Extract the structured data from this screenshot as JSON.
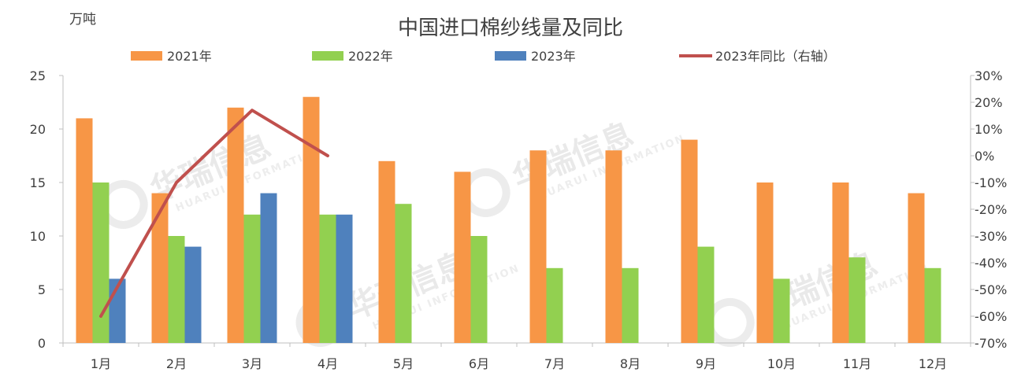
{
  "chart_data": {
    "type": "bar",
    "title": "中国进口棉纱线量及同比",
    "unit_left": "万吨",
    "categories": [
      "1月",
      "2月",
      "3月",
      "4月",
      "5月",
      "6月",
      "7月",
      "8月",
      "9月",
      "10月",
      "11月",
      "12月"
    ],
    "series": [
      {
        "name": "2021年",
        "type": "bar",
        "axis": "left",
        "color": "#F79646",
        "values": [
          21,
          14,
          22,
          23,
          17,
          16,
          18,
          18,
          19,
          15,
          15,
          14
        ]
      },
      {
        "name": "2022年",
        "type": "bar",
        "axis": "left",
        "color": "#92D050",
        "values": [
          15,
          10,
          12,
          12,
          13,
          10,
          7,
          7,
          9,
          6,
          8,
          7
        ]
      },
      {
        "name": "2023年",
        "type": "bar",
        "axis": "left",
        "color": "#4F81BD",
        "values": [
          6,
          9,
          14,
          12,
          null,
          null,
          null,
          null,
          null,
          null,
          null,
          null
        ]
      },
      {
        "name": "2023年同比（右轴）",
        "type": "line",
        "axis": "right",
        "color": "#C0504D",
        "values": [
          -60,
          -10,
          17,
          0,
          null,
          null,
          null,
          null,
          null,
          null,
          null,
          null
        ]
      }
    ],
    "y_left": {
      "min": 0,
      "max": 25,
      "ticks": [
        "0",
        "5",
        "10",
        "15",
        "20",
        "25"
      ]
    },
    "y_right": {
      "min": -70,
      "max": 30,
      "ticks": [
        "-70%",
        "-60%",
        "-50%",
        "-40%",
        "-30%",
        "-20%",
        "-10%",
        "0%",
        "10%",
        "20%",
        "30%"
      ]
    },
    "legend": {
      "placement": "top"
    },
    "grid": false,
    "watermark": {
      "brand": "华瑞信息",
      "sub": "HUARUI INFORMATION"
    }
  }
}
